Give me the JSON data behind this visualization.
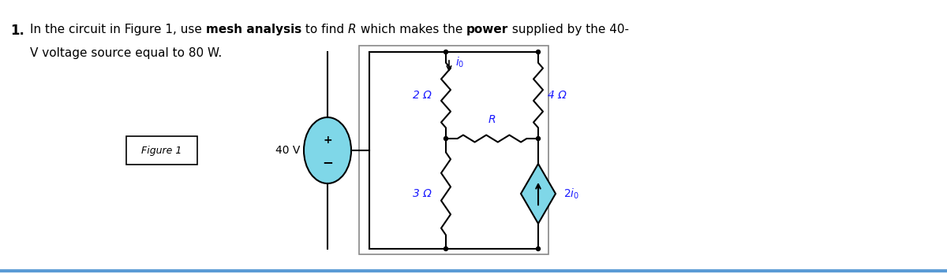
{
  "title_text": "1.",
  "problem_text_line1": "In the circuit in Figure 1, use ",
  "bold1": "mesh analysis",
  "text_mid1": " to find ",
  "italic1": "R",
  "text_mid2": " which makes the ",
  "bold2": "power",
  "text_mid3": " supplied by the 40-",
  "problem_text_line2": "V voltage source equal to 80 W.",
  "figure_label": "Figure 1",
  "source_voltage": "40 V",
  "res1_label": "2 Ω",
  "res2_label": "4 Ω",
  "res3_label": "3 Ω",
  "res_R_label": "R",
  "current_label": "i₀",
  "dep_source_label": "2i₀",
  "bg_color": "#ffffff",
  "circuit_box_color": "#000000",
  "wire_color": "#000000",
  "resistor_color": "#000000",
  "voltage_source_color": "#7fd7e8",
  "dep_source_color": "#7fd7e8",
  "label_color": "#1a1aff",
  "fig_box_color": "#000000",
  "bottom_line_color": "#5b9bd5",
  "font_size_problem": 11,
  "font_size_labels": 10,
  "font_size_number": 12
}
